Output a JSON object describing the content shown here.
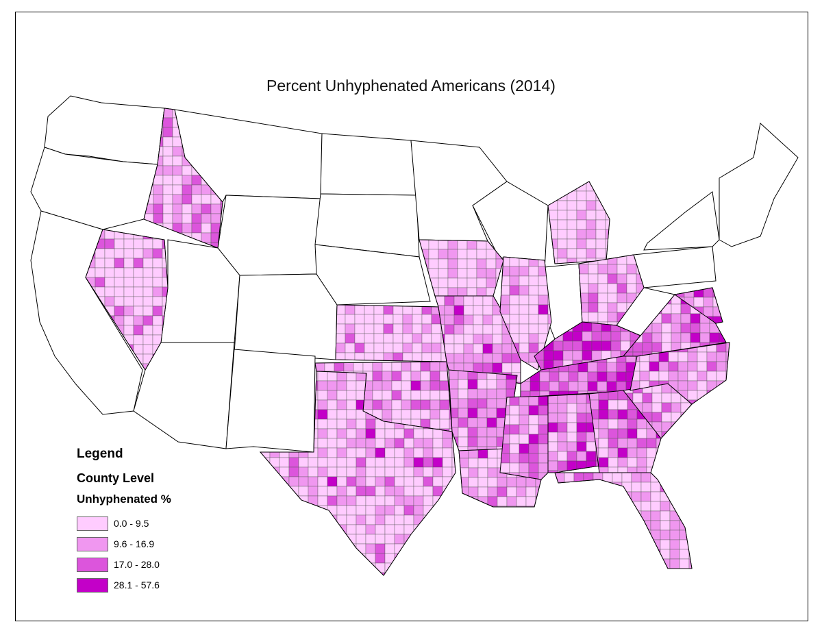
{
  "title": "Percent Unhyphenated Americans (2014)",
  "legend": {
    "title": "Legend",
    "level": "County Level",
    "field": "Unhyphenated %",
    "classes": [
      {
        "label": "0.0 - 9.5",
        "color": "#ffccff"
      },
      {
        "label": "9.6 - 16.9",
        "color": "#f097f0"
      },
      {
        "label": "17.0 - 28.0",
        "color": "#dc55dc"
      },
      {
        "label": "28.1 - 57.6",
        "color": "#c300c8"
      }
    ]
  },
  "map": {
    "no_data_color": "#ffffff",
    "state_border_color": "#000000",
    "county_border_color": "#555555",
    "states_without_county_data": [
      "Washington",
      "Oregon",
      "California",
      "Montana",
      "Wyoming",
      "Utah",
      "Colorado",
      "Arizona",
      "New Mexico",
      "North Dakota",
      "South Dakota",
      "Nebraska",
      "Minnesota",
      "Wisconsin",
      "Indiana",
      "New York",
      "Pennsylvania",
      "Vermont",
      "Maine",
      "New Jersey",
      "Connecticut"
    ],
    "states_with_county_data": [
      "Idaho",
      "Nevada",
      "Kansas",
      "Oklahoma",
      "Texas",
      "Iowa",
      "Missouri",
      "Arkansas",
      "Louisiana",
      "Illinois",
      "Michigan",
      "Ohio",
      "Kentucky",
      "Tennessee",
      "Mississippi",
      "Alabama",
      "Georgia",
      "Florida",
      "South Carolina",
      "North Carolina",
      "Virginia",
      "West Virginia",
      "Maryland",
      "Delaware",
      "New Hampshire",
      "Massachusetts",
      "Rhode Island"
    ]
  }
}
